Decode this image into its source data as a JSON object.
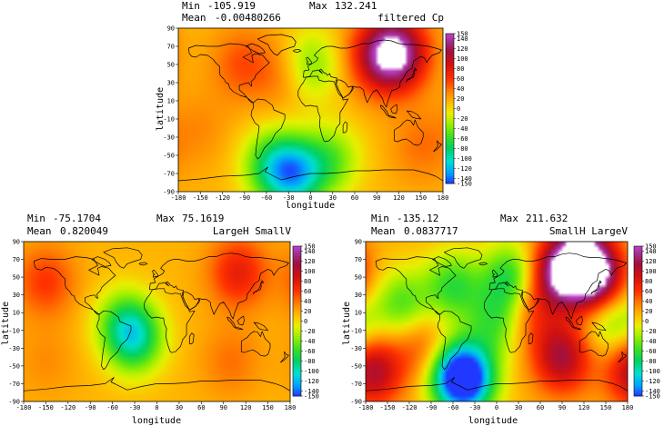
{
  "chart_data": [
    {
      "type": "heatmap",
      "title": "filtered Cp",
      "stats": {
        "min_label": "Min",
        "min": "-105.919",
        "max_label": "Max",
        "max": "132.241",
        "mean_label": "Mean",
        "mean": "-0.00480266"
      },
      "xlabel": "longitude",
      "ylabel": "latitude",
      "xlim": [
        -180,
        180
      ],
      "ylim": [
        -90,
        90
      ],
      "xticks": [
        "-180",
        "-150",
        "-120",
        "-90",
        "-60",
        "-30",
        "0",
        "30",
        "60",
        "90",
        "120",
        "150",
        "180"
      ],
      "yticks": [
        "90",
        "70",
        "50",
        "30",
        "10",
        "-10",
        "-30",
        "-50",
        "-70",
        "-90"
      ],
      "colorbar_ticks": [
        "150",
        "140",
        "120",
        "100",
        "80",
        "60",
        "40",
        "20",
        "0",
        "-20",
        "-40",
        "-60",
        "-80",
        "-100",
        "-120",
        "-140",
        "-150"
      ],
      "blobs": [
        {
          "lon": 120,
          "lat": 62,
          "value": 132
        },
        {
          "lon": 90,
          "lat": 60,
          "value": 90
        },
        {
          "lon": -95,
          "lat": 50,
          "value": 50
        },
        {
          "lon": 0,
          "lat": 50,
          "value": -40
        },
        {
          "lon": -40,
          "lat": 40,
          "value": 40
        },
        {
          "lon": -20,
          "lat": -70,
          "value": -100
        },
        {
          "lon": -55,
          "lat": -62,
          "value": -60
        },
        {
          "lon": 30,
          "lat": -55,
          "value": -40
        },
        {
          "lon": 150,
          "lat": -40,
          "value": 40
        },
        {
          "lon": -150,
          "lat": -20,
          "value": 30
        }
      ]
    },
    {
      "type": "heatmap",
      "title": "LargeH SmallV",
      "stats": {
        "min_label": "Min",
        "min": "-75.1704",
        "max_label": "Max",
        "max": "75.1619",
        "mean_label": "Mean",
        "mean": "0.820049"
      },
      "xlabel": "longitude",
      "ylabel": "latitude",
      "xlim": [
        -180,
        180
      ],
      "ylim": [
        -90,
        90
      ],
      "xticks": [
        "-180",
        "-150",
        "-120",
        "-90",
        "-60",
        "-30",
        "0",
        "30",
        "60",
        "90",
        "120",
        "150",
        "180"
      ],
      "yticks": [
        "90",
        "70",
        "50",
        "30",
        "10",
        "-10",
        "-30",
        "-50",
        "-70",
        "-90"
      ],
      "colorbar_ticks": [
        "150",
        "140",
        "120",
        "100",
        "80",
        "60",
        "40",
        "20",
        "0",
        "-20",
        "-40",
        "-60",
        "-80",
        "-100",
        "-120",
        "-140",
        "-150"
      ],
      "blobs": [
        {
          "lon": 110,
          "lat": 55,
          "value": 75
        },
        {
          "lon": -150,
          "lat": 45,
          "value": 60
        },
        {
          "lon": -30,
          "lat": -20,
          "value": -75
        },
        {
          "lon": -45,
          "lat": 0,
          "value": -40
        },
        {
          "lon": 100,
          "lat": -45,
          "value": 40
        },
        {
          "lon": -150,
          "lat": -45,
          "value": 30
        }
      ]
    },
    {
      "type": "heatmap",
      "title": "SmallH LargeV",
      "stats": {
        "min_label": "Min",
        "min": "-135.12",
        "max_label": "Max",
        "max": "211.632",
        "mean_label": "Mean",
        "mean": "0.0837717"
      },
      "xlabel": "longitude",
      "ylabel": "latitude",
      "xlim": [
        -180,
        180
      ],
      "ylim": [
        -90,
        90
      ],
      "xticks": [
        "-180",
        "-150",
        "-120",
        "-90",
        "-60",
        "-30",
        "0",
        "30",
        "60",
        "90",
        "120",
        "150",
        "180"
      ],
      "yticks": [
        "90",
        "70",
        "50",
        "30",
        "10",
        "-10",
        "-30",
        "-50",
        "-70",
        "-90"
      ],
      "colorbar_ticks": [
        "150",
        "140",
        "120",
        "100",
        "80",
        "60",
        "40",
        "20",
        "0",
        "-20",
        "-40",
        "-60",
        "-80",
        "-100",
        "-120",
        "-140",
        "-150"
      ],
      "blobs": [
        {
          "lon": 120,
          "lat": 62,
          "value": 211
        },
        {
          "lon": 80,
          "lat": 55,
          "value": 110
        },
        {
          "lon": -170,
          "lat": -55,
          "value": 110
        },
        {
          "lon": 90,
          "lat": -40,
          "value": 110
        },
        {
          "lon": -40,
          "lat": -65,
          "value": -135
        },
        {
          "lon": -60,
          "lat": -60,
          "value": -80
        },
        {
          "lon": 20,
          "lat": 50,
          "value": -70
        },
        {
          "lon": -60,
          "lat": 40,
          "value": -60
        },
        {
          "lon": 0,
          "lat": 0,
          "value": -50
        },
        {
          "lon": -130,
          "lat": 20,
          "value": -50
        },
        {
          "lon": 160,
          "lat": 0,
          "value": -50
        },
        {
          "lon": 45,
          "lat": 10,
          "value": 60
        },
        {
          "lon": 150,
          "lat": 40,
          "value": 70
        },
        {
          "lon": -100,
          "lat": -30,
          "value": 60
        }
      ]
    }
  ],
  "colorscale": {
    "stops": [
      {
        "v": -150,
        "c": "#2038ff"
      },
      {
        "v": -130,
        "c": "#00a0ff"
      },
      {
        "v": -105,
        "c": "#00e0d0"
      },
      {
        "v": -80,
        "c": "#00d060"
      },
      {
        "v": -55,
        "c": "#40e020"
      },
      {
        "v": -30,
        "c": "#a0f000"
      },
      {
        "v": -10,
        "c": "#e8f000"
      },
      {
        "v": 10,
        "c": "#ffc000"
      },
      {
        "v": 35,
        "c": "#ff8000"
      },
      {
        "v": 60,
        "c": "#ff3000"
      },
      {
        "v": 90,
        "c": "#d01010"
      },
      {
        "v": 115,
        "c": "#a01040"
      },
      {
        "v": 135,
        "c": "#a03090"
      },
      {
        "v": 150,
        "c": "#c040d0"
      }
    ],
    "over_color": "#ffffff",
    "background_value": 15
  }
}
